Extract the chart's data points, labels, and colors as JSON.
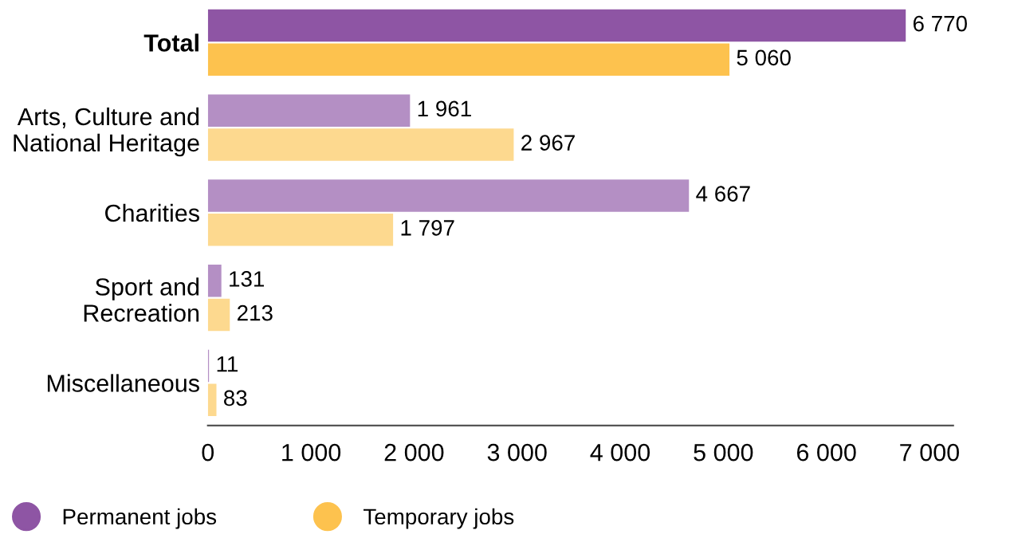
{
  "chart_data": {
    "type": "bar",
    "orientation": "horizontal",
    "categories": [
      "Total",
      "Arts, Culture and\nNational Heritage",
      "Charities",
      "Sport and\nRecreation",
      "Miscellaneous"
    ],
    "series": [
      {
        "name": "Permanent jobs",
        "color": "#8e55a4",
        "colors": [
          "#8e55a4",
          "#b48fc4",
          "#b48fc4",
          "#b48fc4",
          "#b48fc4"
        ],
        "values": [
          6770,
          1961,
          4667,
          131,
          11
        ],
        "value_labels": [
          "6 770",
          "1 961",
          "4 667",
          "131",
          "11"
        ]
      },
      {
        "name": "Temporary jobs",
        "color": "#fdc24e",
        "colors": [
          "#fdc24e",
          "#fdd98f",
          "#fdd98f",
          "#fdd98f",
          "#fdd98f"
        ],
        "values": [
          5060,
          2967,
          1797,
          213,
          83
        ],
        "value_labels": [
          "5 060",
          "2 967",
          "1 797",
          "213",
          "83"
        ]
      }
    ],
    "xlim": [
      0,
      7230
    ],
    "xticks": [
      0,
      {
        "value": 1000,
        "label": "1 000"
      },
      {
        "value": 2000,
        "label": "2 000"
      },
      {
        "value": 3000,
        "label": "3 000"
      },
      {
        "value": 4000,
        "label": "4 000"
      },
      {
        "value": 5000,
        "label": "5 000"
      },
      {
        "value": 6000,
        "label": "6 000"
      },
      {
        "value": 7000,
        "label": "7 000"
      }
    ],
    "grid": false,
    "legend": "bottom"
  }
}
